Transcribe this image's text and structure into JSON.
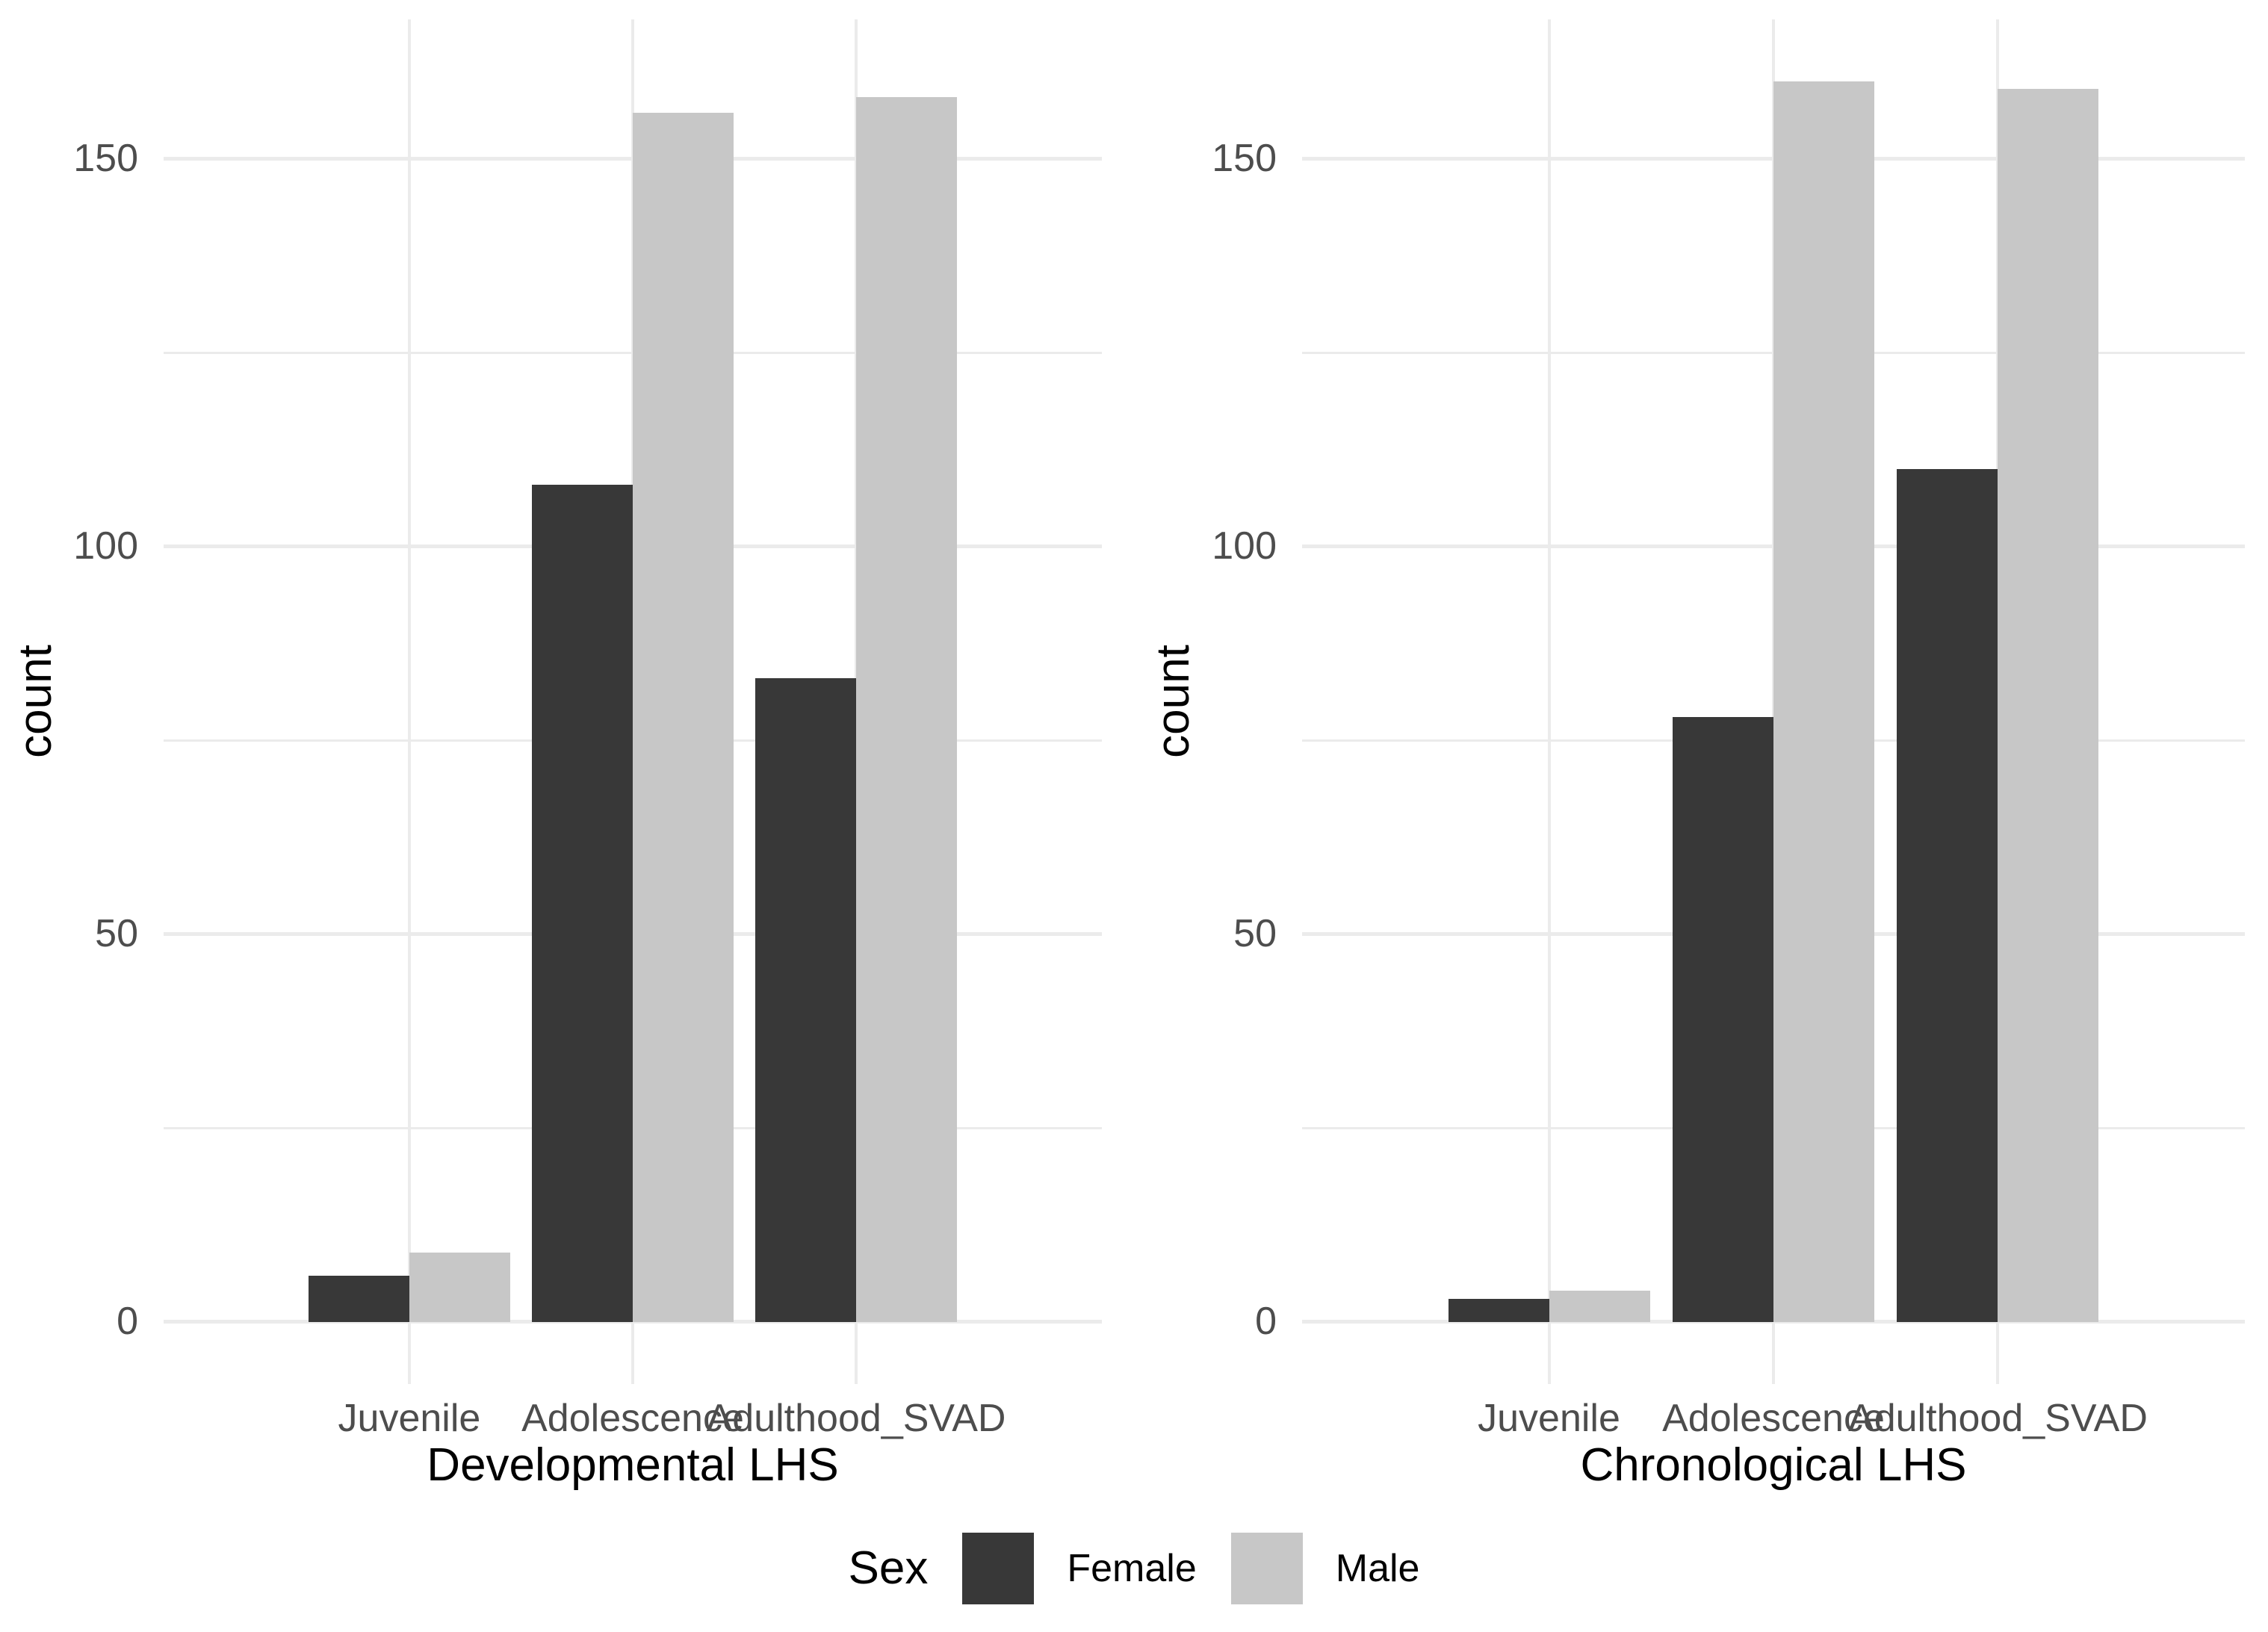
{
  "chart_data": [
    {
      "type": "bar",
      "panel": "left",
      "xlabel": "Developmental LHS",
      "ylabel": "count",
      "categories": [
        "Juvenile",
        "Adolescence",
        "Adulthood_SVAD"
      ],
      "series": [
        {
          "name": "Female",
          "color": "#383838",
          "values": [
            6,
            108,
            83
          ]
        },
        {
          "name": "Male",
          "color": "#C7C7C7",
          "values": [
            9,
            156,
            158
          ]
        }
      ],
      "yticks": [
        0,
        50,
        100,
        150
      ],
      "yticks_minor": [
        25,
        75,
        125
      ],
      "ylim": [
        0,
        160
      ],
      "grid": true,
      "legend_position": "bottom"
    },
    {
      "type": "bar",
      "panel": "right",
      "xlabel": "Chronological LHS",
      "ylabel": "count",
      "categories": [
        "Juvenile",
        "Adolescence",
        "Adulthood_SVAD"
      ],
      "series": [
        {
          "name": "Female",
          "color": "#383838",
          "values": [
            3,
            78,
            110
          ]
        },
        {
          "name": "Male",
          "color": "#C7C7C7",
          "values": [
            4,
            160,
            159
          ]
        }
      ],
      "yticks": [
        0,
        50,
        100,
        150
      ],
      "yticks_minor": [
        25,
        75,
        125
      ],
      "ylim": [
        0,
        160
      ],
      "grid": true,
      "legend_position": "bottom"
    }
  ],
  "legend": {
    "title": "Sex",
    "items": [
      {
        "label": "Female",
        "color": "#383838"
      },
      {
        "label": "Male",
        "color": "#C7C7C7"
      }
    ]
  },
  "style_colors": {
    "background": "#FFFFFF",
    "gridline": "#EBEBEB",
    "tick_text": "#4D4D4D",
    "title_text": "#000000",
    "bar_female": "#383838",
    "bar_male": "#C7C7C7"
  }
}
